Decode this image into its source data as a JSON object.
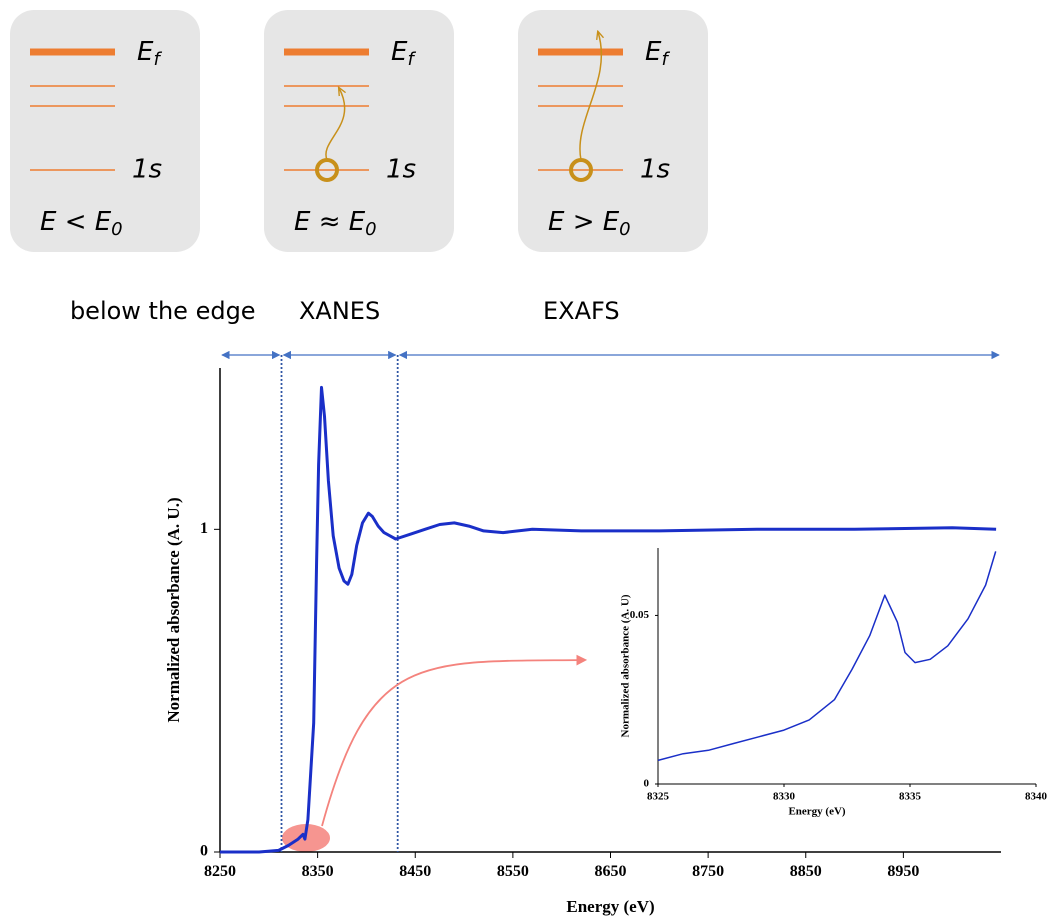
{
  "panels": [
    {
      "fermi": {
        "symbol": "E",
        "subscript": "f"
      },
      "core": "1s",
      "condition": {
        "text": "E < E",
        "subscript": "0"
      }
    },
    {
      "fermi": {
        "symbol": "E",
        "subscript": "f"
      },
      "core": "1s",
      "condition": {
        "text": "E ≈ E",
        "subscript": "0"
      }
    },
    {
      "fermi": {
        "symbol": "E",
        "subscript": "f"
      },
      "core": "1s",
      "condition": {
        "text": "E > E",
        "subscript": "0"
      }
    }
  ],
  "chart_data": [
    {
      "type": "line",
      "x_label": "Energy (eV)",
      "y_label": "Normalized absorbance (A. U.)",
      "color": "#1a2fc8",
      "x": [
        8250,
        8290,
        8310,
        8320,
        8330,
        8335,
        8337,
        8340,
        8346,
        8349,
        8351,
        8354,
        8357,
        8361,
        8366,
        8372,
        8377,
        8381,
        8385,
        8390,
        8396,
        8402,
        8406,
        8412,
        8418,
        8424,
        8430,
        8445,
        8460,
        8475,
        8490,
        8505,
        8520,
        8540,
        8570,
        8620,
        8700,
        8800,
        8900,
        9000,
        9045
      ],
      "values": [
        0,
        0,
        0.005,
        0.02,
        0.04,
        0.055,
        0.04,
        0.1,
        0.4,
        0.9,
        1.2,
        1.44,
        1.35,
        1.15,
        0.98,
        0.88,
        0.84,
        0.83,
        0.86,
        0.95,
        1.02,
        1.05,
        1.04,
        1.01,
        0.99,
        0.98,
        0.97,
        0.985,
        1.0,
        1.015,
        1.02,
        1.01,
        0.995,
        0.99,
        1.0,
        0.995,
        0.995,
        1.0,
        1.0,
        1.005,
        1.0
      ],
      "xlim": [
        8250,
        9050
      ],
      "ylim": [
        0,
        1.5
      ],
      "xticks": [
        8250,
        8350,
        8450,
        8550,
        8650,
        8750,
        8850,
        8950
      ],
      "yticks": [
        0,
        1
      ],
      "regions": [
        {
          "name": "below the edge",
          "range": [
            8250,
            8313
          ]
        },
        {
          "name": "XANES",
          "range": [
            8313,
            8432
          ]
        },
        {
          "name": "EXAFS",
          "range": [
            8432,
            9050
          ]
        }
      ]
    },
    {
      "type": "line",
      "x_label": "Energy (eV)",
      "y_label": "Normalized absorbance (A. U)",
      "color": "#1a2fc8",
      "x": [
        8325,
        8326,
        8327,
        8328,
        8329,
        8330,
        8331,
        8332,
        8332.7,
        8333.4,
        8334,
        8334.5,
        8334.8,
        8335.2,
        8335.8,
        8336.5,
        8337.3,
        8338,
        8338.4
      ],
      "values": [
        0.007,
        0.009,
        0.01,
        0.012,
        0.014,
        0.016,
        0.019,
        0.025,
        0.034,
        0.044,
        0.056,
        0.048,
        0.039,
        0.036,
        0.037,
        0.041,
        0.049,
        0.059,
        0.069
      ],
      "xlim": [
        8325,
        8340
      ],
      "ylim": [
        0,
        0.07
      ],
      "xticks": [
        8325,
        8330,
        8335,
        8340
      ],
      "yticks": [
        0,
        0.05
      ]
    }
  ]
}
